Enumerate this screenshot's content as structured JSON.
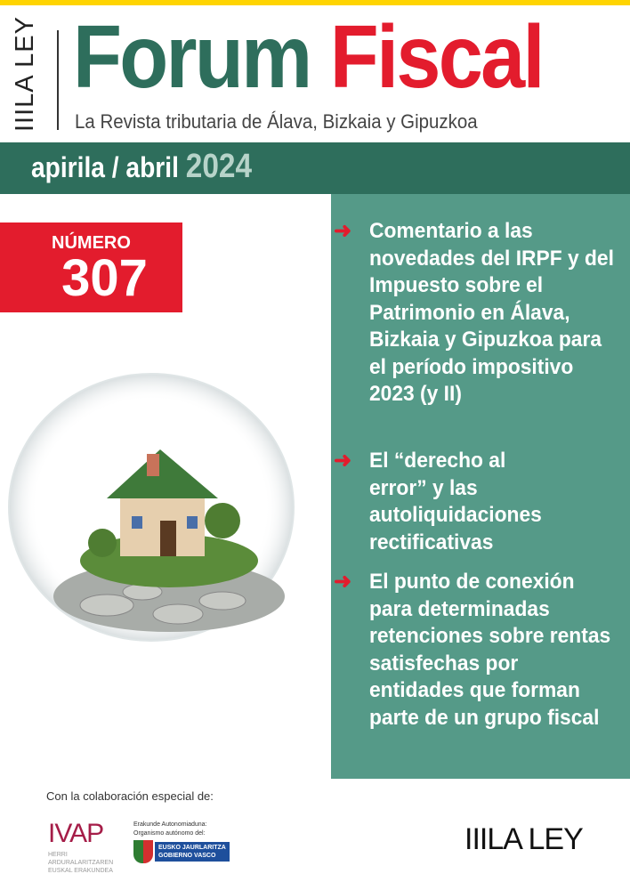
{
  "header": {
    "brand_vertical": "IIILA LEY",
    "title_part1": "Forum",
    "title_part2": "Fiscal",
    "subtitle": "La Revista tributaria de Álava, Bizkaia y Gipuzkoa"
  },
  "issue": {
    "month": "apirila / abril",
    "year": "2024",
    "number_label": "NÚMERO",
    "number": "307"
  },
  "contents": [
    {
      "text": "Comentario a las novedades del IRPF y del Impuesto sobre el Patrimonio en Álava, Bizkaia y Gipuzkoa para el período impositivo 2023 (y II)"
    },
    {
      "text": "El “derecho al error” y las autoliquidaciones rectificativas"
    },
    {
      "text": "El punto de conexión para determinadas retenciones sobre rentas satisfechas por entidades que forman parte de un grupo fiscal"
    }
  ],
  "footer": {
    "collab": "Con la colaboración especial de:",
    "ivap": "IVAP",
    "ivap_sub": "HERRI ARDURALARITZAREN EUSKAL ERAKUNDEA",
    "erakunde": "Erakunde Autonomiaduna:",
    "organismo": "Organismo autónomo del:",
    "gv1": "EUSKO JAURLARITZA",
    "gv2": "GOBIERNO VASCO",
    "laley": "IIILA LEY"
  },
  "colors": {
    "green": "#2e6e5c",
    "teal": "#559a88",
    "red": "#e31c2d",
    "yellow": "#ffd400"
  },
  "icons": {
    "bullet": "arrow-right-icon"
  }
}
